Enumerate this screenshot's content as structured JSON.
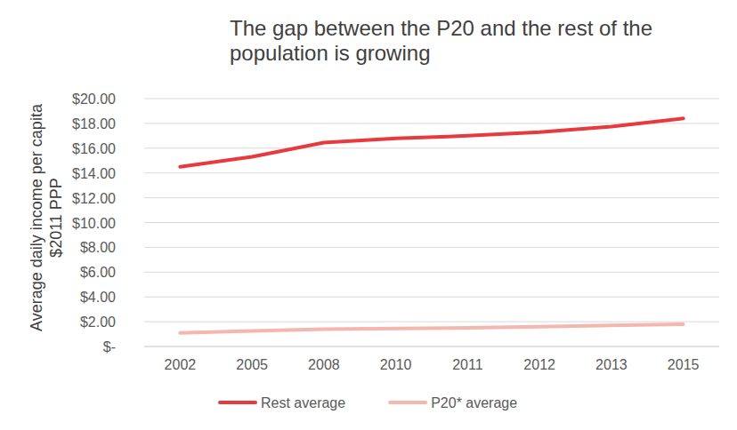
{
  "chart_data": {
    "type": "line",
    "title": "The gap between the P20 and the rest of the population is growing",
    "y_label": "Average daily income per capita $2011 PPP",
    "categories": [
      "2002",
      "2005",
      "2008",
      "2010",
      "2011",
      "2012",
      "2013",
      "2015"
    ],
    "series": [
      {
        "name": "Rest average",
        "color": "#e8393f",
        "values": [
          14.5,
          15.3,
          16.45,
          16.8,
          17.0,
          17.3,
          17.75,
          18.4
        ]
      },
      {
        "name": "P20* average",
        "color": "#f4b6ad",
        "values": [
          1.1,
          1.25,
          1.4,
          1.45,
          1.5,
          1.6,
          1.7,
          1.8
        ]
      }
    ],
    "ylim": [
      0,
      20
    ],
    "yticks": [
      {
        "value": 0,
        "label": "$-"
      },
      {
        "value": 2,
        "label": "$2.00"
      },
      {
        "value": 4,
        "label": "$4.00"
      },
      {
        "value": 6,
        "label": "$6.00"
      },
      {
        "value": 8,
        "label": "$8.00"
      },
      {
        "value": 10,
        "label": "$10.00"
      },
      {
        "value": 12,
        "label": "$12.00"
      },
      {
        "value": 14,
        "label": "$14.00"
      },
      {
        "value": 16,
        "label": "$16.00"
      },
      {
        "value": 18,
        "label": "$18.00"
      },
      {
        "value": 20,
        "label": "$20.00"
      }
    ],
    "grid": true,
    "legend": "bottom"
  }
}
